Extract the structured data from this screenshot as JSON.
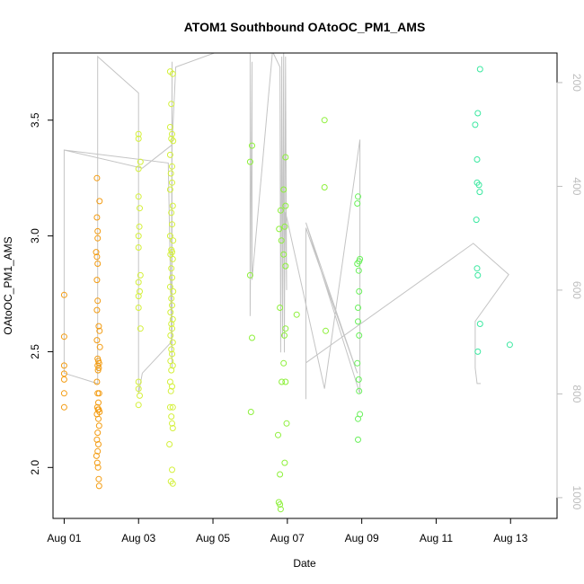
{
  "chart_data": {
    "type": "scatter",
    "title": "ATOM1 Southbound OAtoOC_PM1_AMS",
    "xlabel": "Date",
    "ylabel": "OAtoOC_PM1_AMS",
    "x_ticks": [
      "Aug 01",
      "Aug 03",
      "Aug 05",
      "Aug 07",
      "Aug 09",
      "Aug 11",
      "Aug 13"
    ],
    "y_ticks": [
      "2.0",
      "2.5",
      "3.0",
      "3.5"
    ],
    "y2_ticks": [
      "200",
      "400",
      "600",
      "800",
      "1000"
    ],
    "xlim": [
      -0.3,
      13.25
    ],
    "ylim": [
      1.78,
      3.79
    ],
    "y2lim": [
      1040,
      143
    ],
    "grid": false,
    "scatter_points": [
      {
        "x": 0.0,
        "y": 2.745,
        "color": "#f39c12"
      },
      {
        "x": 0.0,
        "y": 2.565,
        "color": "#f39c12"
      },
      {
        "x": 0.0,
        "y": 2.44,
        "color": "#f39c12"
      },
      {
        "x": 0.0,
        "y": 2.405,
        "color": "#f39c12"
      },
      {
        "x": 0.0,
        "y": 2.38,
        "color": "#f39c12"
      },
      {
        "x": 0.0,
        "y": 2.32,
        "color": "#f39c12"
      },
      {
        "x": 0.0,
        "y": 2.26,
        "color": "#f39c12"
      },
      {
        "x": 0.88,
        "y": 3.25,
        "color": "#f39c12"
      },
      {
        "x": 0.95,
        "y": 3.15,
        "color": "#f39c12"
      },
      {
        "x": 0.88,
        "y": 3.08,
        "color": "#f39c12"
      },
      {
        "x": 0.9,
        "y": 3.02,
        "color": "#f39c12"
      },
      {
        "x": 0.9,
        "y": 2.99,
        "color": "#f39c12"
      },
      {
        "x": 0.86,
        "y": 2.93,
        "color": "#f39c12"
      },
      {
        "x": 0.88,
        "y": 2.91,
        "color": "#f39c12"
      },
      {
        "x": 0.9,
        "y": 2.88,
        "color": "#f39c12"
      },
      {
        "x": 0.88,
        "y": 2.81,
        "color": "#f39c12"
      },
      {
        "x": 0.9,
        "y": 2.72,
        "color": "#f39c12"
      },
      {
        "x": 0.88,
        "y": 2.68,
        "color": "#f39c12"
      },
      {
        "x": 0.93,
        "y": 2.61,
        "color": "#f39c12"
      },
      {
        "x": 0.95,
        "y": 2.59,
        "color": "#f39c12"
      },
      {
        "x": 0.88,
        "y": 2.55,
        "color": "#f39c12"
      },
      {
        "x": 0.96,
        "y": 2.52,
        "color": "#f39c12"
      },
      {
        "x": 0.9,
        "y": 2.47,
        "color": "#f39c12"
      },
      {
        "x": 0.92,
        "y": 2.46,
        "color": "#f39c12"
      },
      {
        "x": 0.94,
        "y": 2.45,
        "color": "#f39c12"
      },
      {
        "x": 0.9,
        "y": 2.44,
        "color": "#f39c12"
      },
      {
        "x": 0.93,
        "y": 2.43,
        "color": "#f39c12"
      },
      {
        "x": 0.91,
        "y": 2.42,
        "color": "#f39c12"
      },
      {
        "x": 0.88,
        "y": 2.37,
        "color": "#f39c12"
      },
      {
        "x": 0.9,
        "y": 2.32,
        "color": "#f39c12"
      },
      {
        "x": 0.94,
        "y": 2.32,
        "color": "#f39c12"
      },
      {
        "x": 0.92,
        "y": 2.28,
        "color": "#f39c12"
      },
      {
        "x": 0.89,
        "y": 2.26,
        "color": "#f39c12"
      },
      {
        "x": 0.91,
        "y": 2.25,
        "color": "#f39c12"
      },
      {
        "x": 0.93,
        "y": 2.25,
        "color": "#f39c12"
      },
      {
        "x": 0.95,
        "y": 2.24,
        "color": "#f39c12"
      },
      {
        "x": 0.88,
        "y": 2.23,
        "color": "#f39c12"
      },
      {
        "x": 0.92,
        "y": 2.21,
        "color": "#f39c12"
      },
      {
        "x": 0.94,
        "y": 2.18,
        "color": "#f39c12"
      },
      {
        "x": 0.9,
        "y": 2.15,
        "color": "#f39c12"
      },
      {
        "x": 0.88,
        "y": 2.12,
        "color": "#f39c12"
      },
      {
        "x": 0.92,
        "y": 2.1,
        "color": "#f39c12"
      },
      {
        "x": 0.9,
        "y": 2.07,
        "color": "#f39c12"
      },
      {
        "x": 0.87,
        "y": 2.05,
        "color": "#f39c12"
      },
      {
        "x": 0.89,
        "y": 2.02,
        "color": "#f39c12"
      },
      {
        "x": 0.91,
        "y": 2.0,
        "color": "#f39c12"
      },
      {
        "x": 0.93,
        "y": 1.95,
        "color": "#f39c12"
      },
      {
        "x": 0.94,
        "y": 1.92,
        "color": "#f39c12"
      },
      {
        "x": 2.0,
        "y": 3.44,
        "color": "#d4f03a"
      },
      {
        "x": 2.0,
        "y": 3.42,
        "color": "#d4f03a"
      },
      {
        "x": 2.05,
        "y": 3.32,
        "color": "#d4f03a"
      },
      {
        "x": 2.0,
        "y": 3.29,
        "color": "#d4f03a"
      },
      {
        "x": 2.0,
        "y": 3.17,
        "color": "#d4f03a"
      },
      {
        "x": 2.03,
        "y": 3.12,
        "color": "#d4f03a"
      },
      {
        "x": 2.02,
        "y": 3.04,
        "color": "#d4f03a"
      },
      {
        "x": 2.0,
        "y": 3.0,
        "color": "#d4f03a"
      },
      {
        "x": 2.0,
        "y": 2.95,
        "color": "#d4f03a"
      },
      {
        "x": 2.05,
        "y": 2.83,
        "color": "#d4f03a"
      },
      {
        "x": 2.0,
        "y": 2.8,
        "color": "#d4f03a"
      },
      {
        "x": 2.03,
        "y": 2.76,
        "color": "#d4f03a"
      },
      {
        "x": 2.0,
        "y": 2.74,
        "color": "#d4f03a"
      },
      {
        "x": 2.0,
        "y": 2.69,
        "color": "#d4f03a"
      },
      {
        "x": 2.05,
        "y": 2.6,
        "color": "#d4f03a"
      },
      {
        "x": 2.0,
        "y": 2.37,
        "color": "#d4f03a"
      },
      {
        "x": 2.0,
        "y": 2.34,
        "color": "#d4f03a"
      },
      {
        "x": 2.03,
        "y": 2.31,
        "color": "#d4f03a"
      },
      {
        "x": 2.0,
        "y": 2.27,
        "color": "#d4f03a"
      },
      {
        "x": 2.85,
        "y": 3.71,
        "color": "#d4f03a"
      },
      {
        "x": 2.92,
        "y": 3.7,
        "color": "#d4f03a"
      },
      {
        "x": 2.88,
        "y": 3.57,
        "color": "#d4f03a"
      },
      {
        "x": 2.85,
        "y": 3.47,
        "color": "#d4f03a"
      },
      {
        "x": 2.9,
        "y": 3.44,
        "color": "#d4f03a"
      },
      {
        "x": 2.88,
        "y": 3.42,
        "color": "#d4f03a"
      },
      {
        "x": 2.93,
        "y": 3.41,
        "color": "#d4f03a"
      },
      {
        "x": 2.85,
        "y": 3.35,
        "color": "#d4f03a"
      },
      {
        "x": 2.9,
        "y": 3.3,
        "color": "#d4f03a"
      },
      {
        "x": 2.87,
        "y": 3.27,
        "color": "#d4f03a"
      },
      {
        "x": 2.9,
        "y": 3.23,
        "color": "#d4f03a"
      },
      {
        "x": 2.85,
        "y": 3.2,
        "color": "#d4f03a"
      },
      {
        "x": 2.92,
        "y": 3.13,
        "color": "#d4f03a"
      },
      {
        "x": 2.88,
        "y": 3.1,
        "color": "#d4f03a"
      },
      {
        "x": 2.9,
        "y": 3.05,
        "color": "#d4f03a"
      },
      {
        "x": 2.85,
        "y": 3.0,
        "color": "#d4f03a"
      },
      {
        "x": 2.93,
        "y": 2.98,
        "color": "#d4f03a"
      },
      {
        "x": 2.88,
        "y": 2.94,
        "color": "#d4f03a"
      },
      {
        "x": 2.9,
        "y": 2.93,
        "color": "#d4f03a"
      },
      {
        "x": 2.86,
        "y": 2.92,
        "color": "#d4f03a"
      },
      {
        "x": 2.92,
        "y": 2.9,
        "color": "#d4f03a"
      },
      {
        "x": 2.88,
        "y": 2.86,
        "color": "#d4f03a"
      },
      {
        "x": 2.9,
        "y": 2.82,
        "color": "#d4f03a"
      },
      {
        "x": 2.85,
        "y": 2.78,
        "color": "#d4f03a"
      },
      {
        "x": 2.93,
        "y": 2.76,
        "color": "#d4f03a"
      },
      {
        "x": 2.88,
        "y": 2.73,
        "color": "#d4f03a"
      },
      {
        "x": 2.9,
        "y": 2.7,
        "color": "#d4f03a"
      },
      {
        "x": 2.86,
        "y": 2.67,
        "color": "#d4f03a"
      },
      {
        "x": 2.92,
        "y": 2.64,
        "color": "#d4f03a"
      },
      {
        "x": 2.88,
        "y": 2.62,
        "color": "#d4f03a"
      },
      {
        "x": 2.9,
        "y": 2.6,
        "color": "#d4f03a"
      },
      {
        "x": 2.86,
        "y": 2.57,
        "color": "#d4f03a"
      },
      {
        "x": 2.92,
        "y": 2.54,
        "color": "#d4f03a"
      },
      {
        "x": 2.88,
        "y": 2.51,
        "color": "#d4f03a"
      },
      {
        "x": 2.9,
        "y": 2.49,
        "color": "#d4f03a"
      },
      {
        "x": 2.86,
        "y": 2.46,
        "color": "#d4f03a"
      },
      {
        "x": 2.92,
        "y": 2.44,
        "color": "#d4f03a"
      },
      {
        "x": 2.88,
        "y": 2.42,
        "color": "#d4f03a"
      },
      {
        "x": 2.85,
        "y": 2.37,
        "color": "#d4f03a"
      },
      {
        "x": 2.9,
        "y": 2.35,
        "color": "#d4f03a"
      },
      {
        "x": 2.87,
        "y": 2.33,
        "color": "#d4f03a"
      },
      {
        "x": 2.85,
        "y": 2.26,
        "color": "#d4f03a"
      },
      {
        "x": 2.92,
        "y": 2.26,
        "color": "#d4f03a"
      },
      {
        "x": 2.88,
        "y": 2.22,
        "color": "#d4f03a"
      },
      {
        "x": 2.9,
        "y": 2.19,
        "color": "#d4f03a"
      },
      {
        "x": 2.92,
        "y": 2.17,
        "color": "#d4f03a"
      },
      {
        "x": 2.83,
        "y": 2.1,
        "color": "#d4f03a"
      },
      {
        "x": 2.9,
        "y": 1.99,
        "color": "#d4f03a"
      },
      {
        "x": 2.87,
        "y": 1.94,
        "color": "#d4f03a"
      },
      {
        "x": 2.92,
        "y": 1.93,
        "color": "#d4f03a"
      },
      {
        "x": 5.05,
        "y": 3.39,
        "color": "#8df03a"
      },
      {
        "x": 5.0,
        "y": 3.32,
        "color": "#8df03a"
      },
      {
        "x": 5.0,
        "y": 2.83,
        "color": "#8df03a"
      },
      {
        "x": 5.05,
        "y": 2.56,
        "color": "#8df03a"
      },
      {
        "x": 5.02,
        "y": 2.24,
        "color": "#8df03a"
      },
      {
        "x": 5.78,
        "y": 3.03,
        "color": "#8df03a"
      },
      {
        "x": 5.82,
        "y": 3.11,
        "color": "#8df03a"
      },
      {
        "x": 5.84,
        "y": 2.98,
        "color": "#8df03a"
      },
      {
        "x": 5.8,
        "y": 2.69,
        "color": "#8df03a"
      },
      {
        "x": 5.85,
        "y": 2.37,
        "color": "#8df03a"
      },
      {
        "x": 5.75,
        "y": 2.14,
        "color": "#8df03a"
      },
      {
        "x": 5.8,
        "y": 1.97,
        "color": "#8df03a"
      },
      {
        "x": 5.77,
        "y": 1.85,
        "color": "#8df03a"
      },
      {
        "x": 5.8,
        "y": 1.84,
        "color": "#8df03a"
      },
      {
        "x": 5.82,
        "y": 1.82,
        "color": "#8df03a"
      },
      {
        "x": 5.95,
        "y": 3.34,
        "color": "#8df03a"
      },
      {
        "x": 5.9,
        "y": 3.2,
        "color": "#8df03a"
      },
      {
        "x": 5.95,
        "y": 3.13,
        "color": "#8df03a"
      },
      {
        "x": 5.93,
        "y": 3.04,
        "color": "#8df03a"
      },
      {
        "x": 5.9,
        "y": 2.92,
        "color": "#8df03a"
      },
      {
        "x": 5.95,
        "y": 2.87,
        "color": "#8df03a"
      },
      {
        "x": 5.95,
        "y": 2.6,
        "color": "#8df03a"
      },
      {
        "x": 5.92,
        "y": 2.57,
        "color": "#8df03a"
      },
      {
        "x": 5.9,
        "y": 2.45,
        "color": "#8df03a"
      },
      {
        "x": 5.95,
        "y": 2.37,
        "color": "#8df03a"
      },
      {
        "x": 5.98,
        "y": 2.19,
        "color": "#8df03a"
      },
      {
        "x": 5.93,
        "y": 2.02,
        "color": "#8df03a"
      },
      {
        "x": 6.25,
        "y": 2.66,
        "color": "#8df03a"
      },
      {
        "x": 7.0,
        "y": 3.5,
        "color": "#8df03a"
      },
      {
        "x": 7.0,
        "y": 3.21,
        "color": "#8df03a"
      },
      {
        "x": 7.03,
        "y": 2.59,
        "color": "#8df03a"
      },
      {
        "x": 7.9,
        "y": 3.17,
        "color": "#69f05a"
      },
      {
        "x": 7.88,
        "y": 3.14,
        "color": "#69f05a"
      },
      {
        "x": 7.95,
        "y": 2.9,
        "color": "#69f05a"
      },
      {
        "x": 7.93,
        "y": 2.89,
        "color": "#69f05a"
      },
      {
        "x": 7.88,
        "y": 2.88,
        "color": "#69f05a"
      },
      {
        "x": 7.92,
        "y": 2.85,
        "color": "#69f05a"
      },
      {
        "x": 7.93,
        "y": 2.76,
        "color": "#69f05a"
      },
      {
        "x": 7.9,
        "y": 2.69,
        "color": "#69f05a"
      },
      {
        "x": 7.9,
        "y": 2.63,
        "color": "#69f05a"
      },
      {
        "x": 7.93,
        "y": 2.57,
        "color": "#69f05a"
      },
      {
        "x": 7.88,
        "y": 2.45,
        "color": "#69f05a"
      },
      {
        "x": 7.92,
        "y": 2.38,
        "color": "#69f05a"
      },
      {
        "x": 7.93,
        "y": 2.33,
        "color": "#69f05a"
      },
      {
        "x": 7.95,
        "y": 2.23,
        "color": "#69f05a"
      },
      {
        "x": 7.9,
        "y": 2.21,
        "color": "#69f05a"
      },
      {
        "x": 7.9,
        "y": 2.12,
        "color": "#69f05a"
      },
      {
        "x": 11.05,
        "y": 3.48,
        "color": "#3ae8a0"
      },
      {
        "x": 11.12,
        "y": 3.53,
        "color": "#3ae8a0"
      },
      {
        "x": 11.18,
        "y": 3.72,
        "color": "#3ae8a0"
      },
      {
        "x": 11.1,
        "y": 3.33,
        "color": "#3ae8a0"
      },
      {
        "x": 11.1,
        "y": 3.23,
        "color": "#3ae8a0"
      },
      {
        "x": 11.15,
        "y": 3.22,
        "color": "#3ae8a0"
      },
      {
        "x": 11.17,
        "y": 3.19,
        "color": "#3ae8a0"
      },
      {
        "x": 11.08,
        "y": 3.07,
        "color": "#3ae8a0"
      },
      {
        "x": 11.1,
        "y": 2.86,
        "color": "#3ae8a0"
      },
      {
        "x": 11.12,
        "y": 2.83,
        "color": "#3ae8a0"
      },
      {
        "x": 11.18,
        "y": 2.62,
        "color": "#3ae8a0"
      },
      {
        "x": 11.12,
        "y": 2.5,
        "color": "#3ae8a0"
      },
      {
        "x": 11.98,
        "y": 2.53,
        "color": "#3ae8a0"
      }
    ],
    "secondary_series": [
      {
        "x": 0.0,
        "y2": 330
      },
      {
        "x": 2.8,
        "y2": 355
      },
      {
        "x": 2.9,
        "y2": 750
      },
      {
        "x": 2.9,
        "y2": 160
      },
      {
        "x": 2.88,
        "y2": 700
      },
      {
        "x": 2.1,
        "y2": 760
      },
      {
        "x": 2.0,
        "y2": 800
      },
      {
        "x": 2.0,
        "y2": 220
      },
      {
        "x": 0.9,
        "y2": 150
      },
      {
        "x": 0.9,
        "y2": 780
      },
      {
        "x": 0.0,
        "y2": 760
      },
      {
        "x": 0.0,
        "y2": 330
      },
      {
        "x": 2.1,
        "y2": 365
      },
      {
        "x": 2.9,
        "y2": 320
      },
      {
        "x": 3.0,
        "y2": 170
      },
      {
        "x": 4.15,
        "y2": 140
      },
      {
        "x": 5.0,
        "y2": 140
      },
      {
        "x": 5.0,
        "y2": 650
      },
      {
        "x": 5.05,
        "y2": 160
      },
      {
        "x": 5.05,
        "y2": 580
      },
      {
        "x": 5.6,
        "y2": 140
      },
      {
        "x": 5.8,
        "y2": 170
      },
      {
        "x": 5.82,
        "y2": 720
      },
      {
        "x": 5.85,
        "y2": 150
      },
      {
        "x": 5.87,
        "y2": 690
      },
      {
        "x": 5.9,
        "y2": 140
      },
      {
        "x": 5.92,
        "y2": 720
      },
      {
        "x": 5.95,
        "y2": 150
      },
      {
        "x": 5.98,
        "y2": 600
      },
      {
        "x": 5.95,
        "y2": 450
      },
      {
        "x": 7.0,
        "y2": 790
      },
      {
        "x": 7.95,
        "y2": 310
      },
      {
        "x": 7.95,
        "y2": 800
      },
      {
        "x": 6.5,
        "y2": 470
      },
      {
        "x": 7.88,
        "y2": 760
      },
      {
        "x": 6.5,
        "y2": 480
      },
      {
        "x": 6.5,
        "y2": 810
      },
      {
        "x": 6.5,
        "y2": 740
      },
      {
        "x": 11.0,
        "y2": 510
      },
      {
        "x": 11.95,
        "y2": 570
      },
      {
        "x": 11.05,
        "y2": 660
      },
      {
        "x": 11.05,
        "y2": 750
      },
      {
        "x": 11.1,
        "y2": 780
      },
      {
        "x": 11.2,
        "y2": 780
      }
    ],
    "colors": {
      "orange": "#f39c12",
      "yellow": "#d4f03a",
      "green": "#8df03a",
      "green2": "#69f05a",
      "teal": "#3ae8a0",
      "line": "#c4c4c4",
      "axis": "#000000",
      "axis2": "#bdbdbd"
    }
  }
}
